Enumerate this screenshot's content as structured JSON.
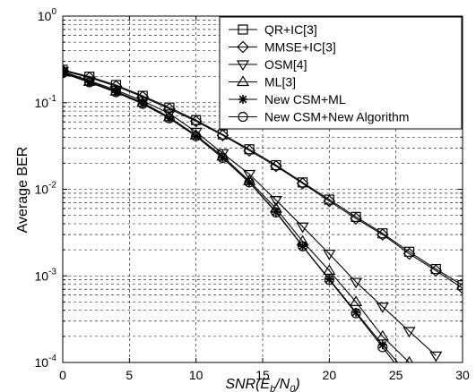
{
  "chart_data": {
    "type": "line",
    "xlabel": "SNR(E_b/N_0)",
    "ylabel": "Average BER",
    "xlim": [
      0,
      30
    ],
    "ylim": [
      0.0001,
      1
    ],
    "yscale": "log",
    "grid": true,
    "legend_position": "top-right",
    "xticks": [
      "0",
      "5",
      "10",
      "15",
      "20",
      "25",
      "30"
    ],
    "yticks": [
      {
        "base": "10",
        "exp": "0"
      },
      {
        "base": "10",
        "exp": "-1"
      },
      {
        "base": "10",
        "exp": "-2"
      },
      {
        "base": "10",
        "exp": "-3"
      },
      {
        "base": "10",
        "exp": "-4"
      }
    ],
    "series": [
      {
        "name": "QR+IC[3]",
        "marker": "square",
        "x": [
          0,
          2,
          4,
          6,
          8,
          10,
          12,
          14,
          16,
          18,
          20,
          22,
          24,
          26,
          28,
          30
        ],
        "y": [
          0.24,
          0.2,
          0.16,
          0.12,
          0.088,
          0.063,
          0.043,
          0.029,
          0.019,
          0.012,
          0.0076,
          0.0048,
          0.0031,
          0.0019,
          0.0012,
          0.00078
        ]
      },
      {
        "name": "MMSE+IC[3]",
        "marker": "diamond",
        "x": [
          0,
          2,
          4,
          6,
          8,
          10,
          12,
          14,
          16,
          18,
          20,
          22,
          24,
          26,
          28,
          30
        ],
        "y": [
          0.235,
          0.195,
          0.155,
          0.117,
          0.085,
          0.061,
          0.042,
          0.028,
          0.0185,
          0.0117,
          0.0073,
          0.0046,
          0.003,
          0.0018,
          0.00115,
          0.00072
        ]
      },
      {
        "name": "OSM[4]",
        "marker": "triangle-down",
        "x": [
          0,
          2,
          4,
          6,
          8,
          10,
          12,
          14,
          16,
          18,
          20,
          22,
          24,
          26,
          28
        ],
        "y": [
          0.23,
          0.18,
          0.14,
          0.105,
          0.075,
          0.046,
          0.026,
          0.015,
          0.0075,
          0.0037,
          0.0018,
          0.00085,
          0.00044,
          0.00023,
          0.00012
        ]
      },
      {
        "name": "ML[3]",
        "marker": "triangle-up",
        "x": [
          0,
          2,
          4,
          6,
          8,
          10,
          12,
          14,
          16,
          18,
          20,
          22,
          24,
          26
        ],
        "y": [
          0.225,
          0.175,
          0.135,
          0.1,
          0.068,
          0.042,
          0.024,
          0.0125,
          0.006,
          0.0025,
          0.00115,
          0.0005,
          0.0002,
          0.0001
        ]
      },
      {
        "name": "New CSM+ML",
        "marker": "star",
        "x": [
          0,
          2,
          4,
          6,
          8,
          10,
          12,
          14,
          16,
          18,
          20,
          22,
          24,
          26
        ],
        "y": [
          0.22,
          0.172,
          0.132,
          0.097,
          0.066,
          0.041,
          0.023,
          0.012,
          0.0055,
          0.0022,
          0.00092,
          0.00038,
          0.00016,
          7e-05
        ]
      },
      {
        "name": "New CSM+New Algorithm",
        "marker": "circle",
        "x": [
          0,
          2,
          4,
          6,
          8,
          10,
          12,
          14,
          16,
          18,
          20,
          22,
          24,
          26
        ],
        "y": [
          0.22,
          0.172,
          0.132,
          0.097,
          0.066,
          0.041,
          0.023,
          0.012,
          0.0054,
          0.0022,
          0.0009,
          0.00037,
          0.00015,
          6e-05
        ]
      }
    ]
  }
}
